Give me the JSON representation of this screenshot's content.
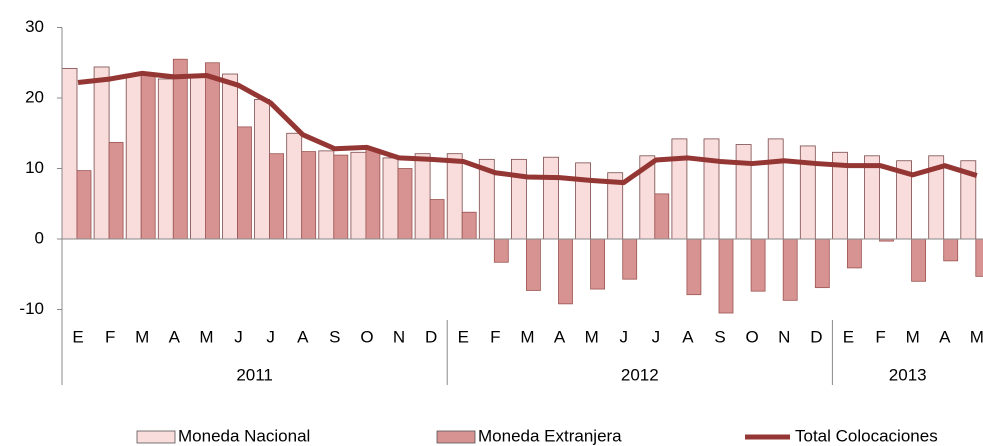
{
  "chart_data": {
    "type": "bar_line",
    "categories": [
      "E",
      "F",
      "M",
      "A",
      "M",
      "J",
      "J",
      "A",
      "S",
      "O",
      "N",
      "D",
      "E",
      "F",
      "M",
      "A",
      "M",
      "J",
      "J",
      "A",
      "S",
      "O",
      "N",
      "D",
      "E",
      "F",
      "M",
      "A",
      "M"
    ],
    "x_groups": [
      {
        "label": "2011",
        "months": 12
      },
      {
        "label": "2012",
        "months": 12
      },
      {
        "label": "2013",
        "months": 5
      }
    ],
    "series": [
      {
        "name": "Moneda Nacional",
        "type": "bar",
        "color": "#f9dddc",
        "values": [
          24.2,
          24.4,
          23.2,
          22.7,
          23,
          23.4,
          19.8,
          15,
          12.5,
          12.3,
          11.5,
          12.1,
          12.1,
          11.3,
          11.3,
          11.6,
          10.8,
          9.4,
          11.8,
          14.2,
          14.2,
          13.4,
          14.2,
          13.2,
          12.3,
          11.8,
          11.1,
          11.8,
          11.1
        ]
      },
      {
        "name": "Moneda Extranjera",
        "type": "bar",
        "color": "#d79391",
        "values": [
          9.7,
          13.7,
          23.5,
          25.5,
          25,
          15.9,
          12.1,
          12.4,
          11.9,
          12.7,
          10,
          5.6,
          3.8,
          -3.3,
          -7.3,
          -9.2,
          -7.1,
          -5.7,
          6.4,
          -7.9,
          -10.5,
          -7.4,
          -8.7,
          -6.9,
          -4.1,
          -0.3,
          -6,
          -3.1,
          -5.3
        ]
      },
      {
        "name": "Total Colocaciones",
        "type": "line",
        "color": "#943634",
        "values": [
          22.2,
          22.7,
          23.5,
          23,
          23.2,
          21.8,
          19.3,
          14.8,
          12.8,
          13,
          11.5,
          11.3,
          11,
          9.4,
          8.8,
          8.7,
          8.3,
          8,
          11.2,
          11.5,
          11,
          10.7,
          11.1,
          10.7,
          10.4,
          10.4,
          9.1,
          10.4,
          9
        ]
      }
    ],
    "ylim": [
      -10,
      30
    ],
    "yticks": [
      -10,
      0,
      10,
      20,
      30
    ],
    "legend": "bottom"
  }
}
